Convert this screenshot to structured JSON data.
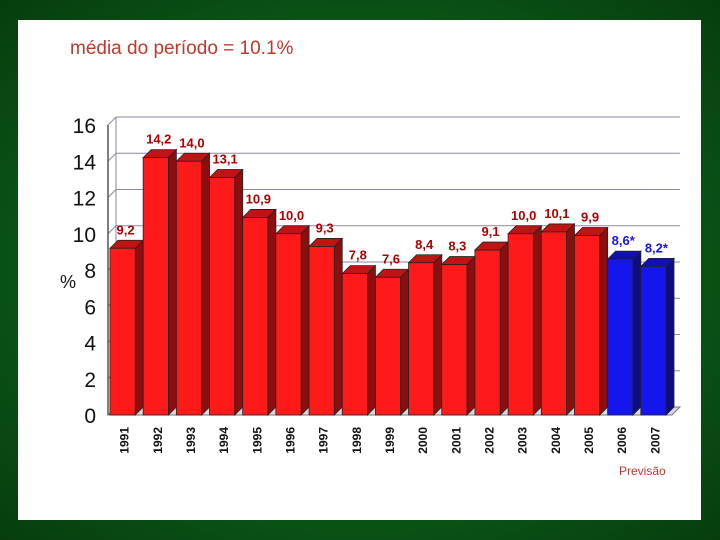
{
  "page": {
    "title": "média do período = 10.1%",
    "note": "Previsão"
  },
  "colors": {
    "actual": "#ff1a1a",
    "forecast": "#1515ee",
    "actual_label": "#b00000",
    "forecast_label": "#1515ee",
    "grid": "#8a8aa0"
  },
  "chart_data": {
    "type": "bar",
    "title": "média do período = 10.1%",
    "xlabel": "",
    "ylabel": "%",
    "ylim": [
      0,
      16
    ],
    "yticks": [
      0,
      2,
      4,
      6,
      8,
      10,
      12,
      14,
      16
    ],
    "categories": [
      "1991",
      "1992",
      "1993",
      "1994",
      "1995",
      "1996",
      "1997",
      "1998",
      "1999",
      "2000",
      "2001",
      "2002",
      "2003",
      "2004",
      "2005",
      "2006",
      "2007"
    ],
    "values": [
      9.2,
      14.2,
      14.0,
      13.1,
      10.9,
      10.0,
      9.3,
      7.8,
      7.6,
      8.4,
      8.3,
      9.1,
      10.0,
      10.1,
      9.9,
      8.6,
      8.2
    ],
    "labels": [
      "9,2",
      "14,2",
      "14,0",
      "13,1",
      "10,9",
      "10,0",
      "9,3",
      "7,8",
      "7,6",
      "8,4",
      "8,3",
      "9,1",
      "10,0",
      "10,1",
      "9,9",
      "8,6*",
      "8,2*"
    ],
    "forecast": [
      false,
      false,
      false,
      false,
      false,
      false,
      false,
      false,
      false,
      false,
      false,
      false,
      false,
      false,
      false,
      true,
      true
    ],
    "grid": true,
    "annotation": "Previsão"
  }
}
